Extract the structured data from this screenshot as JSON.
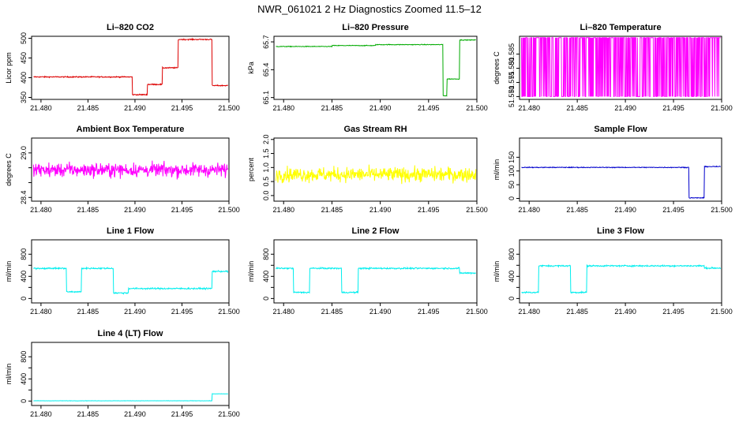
{
  "title": "NWR_061021  2 Hz Diagnostics Zoomed 11.5–12",
  "chart_data": [
    {
      "type": "line",
      "title": "Li–820 CO2",
      "ylabel": "Licor ppm",
      "color": "#dd0000",
      "xlim": [
        21.479,
        21.5
      ],
      "ylim": [
        345,
        505
      ],
      "x_ticks": [
        21.48,
        21.485,
        21.49,
        21.495,
        21.5
      ],
      "x_tick_labels": [
        "21.480",
        "21.485",
        "21.490",
        "21.495",
        "21.500"
      ],
      "y_ticks": [
        350,
        400,
        450,
        500
      ],
      "y_tick_labels": [
        "350",
        "400",
        "450",
        "500"
      ],
      "noise": 1.5,
      "segments": [
        [
          21.479,
          21.4897,
          402
        ],
        [
          21.4897,
          21.4913,
          357
        ],
        [
          21.4913,
          21.4929,
          383
        ],
        [
          21.4929,
          21.4946,
          425
        ],
        [
          21.4946,
          21.4982,
          497
        ],
        [
          21.4982,
          21.5,
          380
        ]
      ]
    },
    {
      "type": "line",
      "title": "Li–820 Pressure",
      "ylabel": "kPa",
      "color": "#00aa00",
      "xlim": [
        21.479,
        21.5
      ],
      "ylim": [
        65.08,
        65.76
      ],
      "x_ticks": [
        21.48,
        21.485,
        21.49,
        21.495,
        21.5
      ],
      "x_tick_labels": [
        "21.480",
        "21.485",
        "21.490",
        "21.495",
        "21.500"
      ],
      "y_ticks": [
        65.1,
        65.4,
        65.7
      ],
      "y_tick_labels": [
        "65.1",
        "65.4",
        "65.7"
      ],
      "noise": 0.004,
      "segments": [
        [
          21.479,
          21.485,
          65.65
        ],
        [
          21.485,
          21.4895,
          65.66
        ],
        [
          21.4895,
          21.4965,
          65.67
        ],
        [
          21.4965,
          21.4969,
          65.12
        ],
        [
          21.4969,
          21.4982,
          65.3
        ],
        [
          21.4982,
          21.5,
          65.72
        ]
      ]
    },
    {
      "type": "binary",
      "title": "Li–820 Temperature",
      "ylabel": "degrees C",
      "color": "#ff00ff",
      "xlim": [
        21.479,
        21.5
      ],
      "ylim": [
        51.569,
        51.5913
      ],
      "x_ticks": [
        21.48,
        21.485,
        21.49,
        21.495,
        21.5
      ],
      "x_tick_labels": [
        "21.480",
        "21.485",
        "21.490",
        "21.495",
        "21.500"
      ],
      "y_ticks": [
        51.57,
        51.575,
        51.58,
        51.585
      ],
      "y_tick_labels": [
        "51.570",
        "51.575",
        "51.580",
        "51.585"
      ],
      "levels": [
        51.57,
        51.5908
      ]
    },
    {
      "type": "line",
      "title": "Ambient Box Temperature",
      "ylabel": "degrees C",
      "color": "#ff00ff",
      "xlim": [
        21.479,
        21.5
      ],
      "ylim": [
        28.35,
        29.2
      ],
      "x_ticks": [
        21.48,
        21.485,
        21.49,
        21.495,
        21.5
      ],
      "x_tick_labels": [
        "21.480",
        "21.485",
        "21.490",
        "21.495",
        "21.500"
      ],
      "y_ticks": [
        28.4,
        28.6,
        28.8,
        29.0
      ],
      "y_tick_labels": [
        "28.4",
        "",
        "",
        "29.0"
      ],
      "noise": 0.1,
      "segments": [
        [
          21.479,
          21.5,
          28.77
        ]
      ]
    },
    {
      "type": "line",
      "title": "Gas Stream RH",
      "ylabel": "percent",
      "color": "#ffff00",
      "xlim": [
        21.479,
        21.5
      ],
      "ylim": [
        -0.2,
        2.05
      ],
      "x_ticks": [
        21.48,
        21.485,
        21.49,
        21.495,
        21.5
      ],
      "x_tick_labels": [
        "21.480",
        "21.485",
        "21.490",
        "21.495",
        "21.500"
      ],
      "y_ticks": [
        0.0,
        0.5,
        1.0,
        1.5,
        2.0
      ],
      "y_tick_labels": [
        "0.0",
        "0.5",
        "1.0",
        "1.5",
        "2.0"
      ],
      "noise": 0.28,
      "segments": [
        [
          21.479,
          21.5,
          0.75
        ]
      ]
    },
    {
      "type": "line",
      "title": "Sample Flow",
      "ylabel": "ml/min",
      "color": "#0000cc",
      "xlim": [
        21.479,
        21.5
      ],
      "ylim": [
        -10,
        220
      ],
      "x_ticks": [
        21.48,
        21.485,
        21.49,
        21.495,
        21.5
      ],
      "x_tick_labels": [
        "21.480",
        "21.485",
        "21.490",
        "21.495",
        "21.500"
      ],
      "y_ticks": [
        0,
        50,
        100,
        150
      ],
      "y_tick_labels": [
        "0",
        "50",
        "100",
        "150"
      ],
      "noise": 1.5,
      "segments": [
        [
          21.479,
          21.4966,
          113
        ],
        [
          21.4966,
          21.4982,
          2
        ],
        [
          21.4982,
          21.5,
          116
        ]
      ]
    },
    {
      "type": "line",
      "title": "Line 1 Flow",
      "ylabel": "ml/min",
      "color": "#00eeee",
      "xlim": [
        21.479,
        21.5
      ],
      "ylim": [
        -80,
        1060
      ],
      "x_ticks": [
        21.48,
        21.485,
        21.49,
        21.495,
        21.5
      ],
      "x_tick_labels": [
        "21.480",
        "21.485",
        "21.490",
        "21.495",
        "21.500"
      ],
      "y_ticks": [
        0,
        200,
        400,
        600,
        800
      ],
      "y_tick_labels": [
        "0",
        "",
        "400",
        "",
        "800"
      ],
      "noise": 14,
      "segments": [
        [
          21.479,
          21.4827,
          545
        ],
        [
          21.4827,
          21.4843,
          120
        ],
        [
          21.4843,
          21.4877,
          545
        ],
        [
          21.4877,
          21.4893,
          100
        ],
        [
          21.4893,
          21.4982,
          180
        ],
        [
          21.4982,
          21.5,
          490
        ]
      ]
    },
    {
      "type": "line",
      "title": "Line 2 Flow",
      "ylabel": "ml/min",
      "color": "#00eeee",
      "xlim": [
        21.479,
        21.5
      ],
      "ylim": [
        -80,
        1060
      ],
      "x_ticks": [
        21.48,
        21.485,
        21.49,
        21.495,
        21.5
      ],
      "x_tick_labels": [
        "21.480",
        "21.485",
        "21.490",
        "21.495",
        "21.500"
      ],
      "y_ticks": [
        0,
        200,
        400,
        600,
        800
      ],
      "y_tick_labels": [
        "0",
        "",
        "400",
        "",
        "800"
      ],
      "noise": 14,
      "segments": [
        [
          21.479,
          21.481,
          545
        ],
        [
          21.481,
          21.4827,
          110
        ],
        [
          21.4827,
          21.486,
          545
        ],
        [
          21.486,
          21.4877,
          110
        ],
        [
          21.4877,
          21.4982,
          545
        ],
        [
          21.4982,
          21.5,
          460
        ]
      ]
    },
    {
      "type": "line",
      "title": "Line 3 Flow",
      "ylabel": "ml/min",
      "color": "#00eeee",
      "xlim": [
        21.479,
        21.5
      ],
      "ylim": [
        -80,
        1060
      ],
      "x_ticks": [
        21.48,
        21.485,
        21.49,
        21.495,
        21.5
      ],
      "x_tick_labels": [
        "21.480",
        "21.485",
        "21.490",
        "21.495",
        "21.500"
      ],
      "y_ticks": [
        0,
        200,
        400,
        600,
        800
      ],
      "y_tick_labels": [
        "0",
        "",
        "400",
        "",
        "800"
      ],
      "noise": 14,
      "segments": [
        [
          21.479,
          21.481,
          110
        ],
        [
          21.481,
          21.4843,
          590
        ],
        [
          21.4843,
          21.486,
          110
        ],
        [
          21.486,
          21.4982,
          590
        ],
        [
          21.4982,
          21.5,
          550
        ]
      ]
    },
    {
      "type": "line",
      "title": "Line 4 (LT) Flow",
      "ylabel": "ml/min",
      "color": "#00eeee",
      "xlim": [
        21.479,
        21.5
      ],
      "ylim": [
        -80,
        1060
      ],
      "x_ticks": [
        21.48,
        21.485,
        21.49,
        21.495,
        21.5
      ],
      "x_tick_labels": [
        "21.480",
        "21.485",
        "21.490",
        "21.495",
        "21.500"
      ],
      "y_ticks": [
        0,
        200,
        400,
        600,
        800
      ],
      "y_tick_labels": [
        "0",
        "",
        "400",
        "",
        "800"
      ],
      "noise": 3,
      "segments": [
        [
          21.479,
          21.4982,
          5
        ],
        [
          21.4982,
          21.5,
          130
        ]
      ]
    }
  ]
}
